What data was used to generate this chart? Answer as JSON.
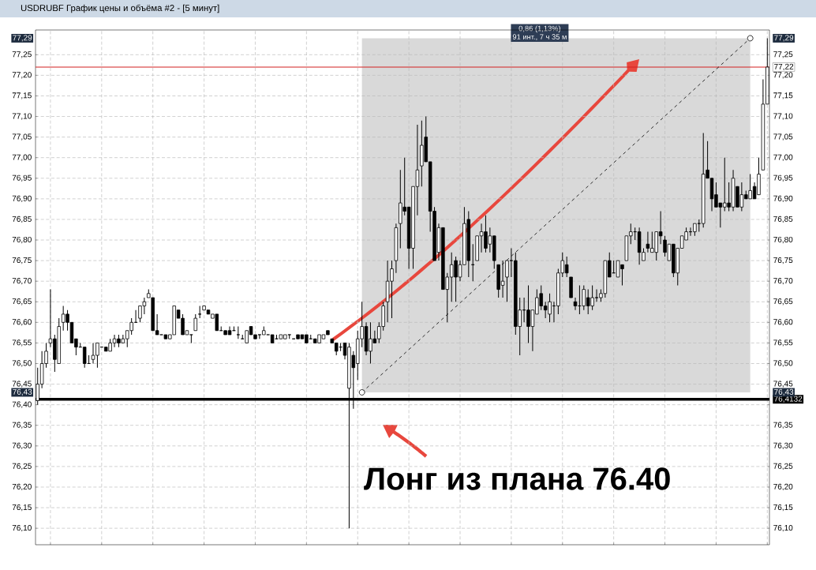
{
  "chart_data": {
    "type": "candlestick",
    "title": "USDRUBF График цены и объёма #2 - [5 минут]",
    "categories": [
      null,
      null,
      null,
      null,
      null,
      null,
      null,
      null,
      null,
      null,
      null,
      null,
      null,
      null,
      null,
      null,
      null,
      null,
      null,
      null,
      null,
      null,
      null,
      null,
      null,
      null,
      null,
      null,
      null,
      null,
      null,
      null,
      null,
      null,
      null,
      null,
      null,
      null,
      null,
      null,
      null,
      null,
      null,
      null,
      null,
      null,
      null,
      null,
      null,
      null,
      null,
      null,
      null,
      null,
      null,
      null,
      null,
      null,
      null,
      null,
      null,
      null,
      null,
      null,
      null,
      null,
      null,
      null,
      null,
      null,
      null,
      null,
      null,
      null,
      null,
      null,
      null,
      null,
      null,
      null,
      null,
      null,
      null,
      null,
      null,
      null,
      null,
      null,
      null,
      null,
      null,
      null,
      null,
      null,
      null,
      null,
      null,
      null,
      null,
      null,
      null,
      null,
      null,
      null,
      null,
      null,
      null,
      null,
      null,
      null,
      null,
      null,
      null,
      null,
      null,
      null,
      null,
      null,
      null,
      null,
      null,
      null,
      null,
      null,
      null,
      null,
      null,
      null,
      null,
      null,
      null,
      null,
      null,
      null,
      null,
      null,
      null,
      null,
      null,
      null,
      null,
      null,
      null,
      null,
      null,
      null,
      null,
      null,
      null,
      null,
      null,
      null,
      null,
      null,
      null,
      null,
      null,
      null,
      null,
      null,
      null,
      null,
      null,
      null,
      null,
      null,
      null,
      null,
      null,
      null,
      null,
      null
    ],
    "ohlc": [
      [
        76.41,
        76.49,
        76.4,
        76.45
      ],
      [
        76.45,
        76.53,
        76.44,
        76.5
      ],
      [
        76.5,
        76.55,
        76.49,
        76.53
      ],
      [
        76.55,
        76.68,
        76.54,
        76.56
      ],
      [
        76.56,
        76.57,
        76.48,
        76.51
      ],
      [
        76.5,
        76.61,
        76.5,
        76.59
      ],
      [
        76.6,
        76.64,
        76.58,
        76.62
      ],
      [
        76.62,
        76.63,
        76.58,
        76.6
      ],
      [
        76.6,
        76.6,
        76.55,
        76.55
      ],
      [
        76.56,
        76.56,
        76.52,
        76.54
      ],
      [
        76.54,
        76.55,
        76.54,
        76.54
      ],
      [
        76.54,
        76.54,
        76.49,
        76.5
      ],
      [
        76.5,
        76.52,
        76.5,
        76.5
      ],
      [
        76.51,
        76.55,
        76.5,
        76.52
      ],
      [
        76.52,
        76.55,
        76.49,
        76.55
      ],
      [
        76.54,
        76.54,
        76.54,
        76.54
      ],
      [
        76.54,
        76.54,
        76.53,
        76.53
      ],
      [
        76.53,
        76.56,
        76.53,
        76.55
      ],
      [
        76.55,
        76.57,
        76.54,
        76.56
      ],
      [
        76.56,
        76.57,
        76.54,
        76.55
      ],
      [
        76.55,
        76.57,
        76.55,
        76.56
      ],
      [
        76.56,
        76.58,
        76.54,
        76.58
      ],
      [
        76.58,
        76.61,
        76.57,
        76.6
      ],
      [
        76.6,
        76.63,
        76.6,
        76.6
      ],
      [
        76.61,
        76.64,
        76.6,
        76.64
      ],
      [
        76.64,
        76.66,
        76.62,
        76.65
      ],
      [
        76.66,
        76.68,
        76.66,
        76.67
      ],
      [
        76.66,
        76.66,
        76.58,
        76.58
      ],
      [
        76.58,
        76.62,
        76.57,
        76.57
      ],
      [
        76.57,
        76.57,
        76.57,
        76.57
      ],
      [
        76.57,
        76.57,
        76.56,
        76.56
      ],
      [
        76.56,
        76.57,
        76.56,
        76.57
      ],
      [
        76.57,
        76.64,
        76.57,
        76.64
      ],
      [
        76.63,
        76.63,
        76.61,
        76.61
      ],
      [
        76.61,
        76.62,
        76.57,
        76.57
      ],
      [
        76.57,
        76.58,
        76.57,
        76.58
      ],
      [
        76.57,
        76.57,
        76.55,
        76.57
      ],
      [
        76.58,
        76.62,
        76.58,
        76.61
      ],
      [
        76.62,
        76.64,
        76.61,
        76.62
      ],
      [
        76.63,
        76.64,
        76.63,
        76.64
      ],
      [
        76.63,
        76.63,
        76.62,
        76.62
      ],
      [
        76.61,
        76.62,
        76.61,
        76.62
      ],
      [
        76.62,
        76.62,
        76.58,
        76.58
      ],
      [
        76.58,
        76.59,
        76.58,
        76.58
      ],
      [
        76.58,
        76.58,
        76.57,
        76.57
      ],
      [
        76.58,
        76.59,
        76.57,
        76.57
      ],
      [
        76.58,
        76.59,
        76.58,
        76.58
      ],
      [
        76.57,
        76.59,
        76.56,
        76.57
      ],
      [
        76.56,
        76.57,
        76.56,
        76.56
      ],
      [
        76.55,
        76.58,
        76.55,
        76.58
      ],
      [
        76.59,
        76.59,
        76.57,
        76.57
      ],
      [
        76.57,
        76.57,
        76.56,
        76.56
      ],
      [
        76.57,
        76.57,
        76.56,
        76.57
      ],
      [
        76.57,
        76.59,
        76.57,
        76.58
      ],
      [
        76.57,
        76.57,
        76.57,
        76.57
      ],
      [
        76.57,
        76.57,
        76.55,
        76.55
      ],
      [
        76.56,
        76.57,
        76.56,
        76.56
      ],
      [
        76.56,
        76.57,
        76.56,
        76.57
      ],
      [
        76.56,
        76.57,
        76.56,
        76.57
      ],
      [
        76.57,
        76.57,
        76.56,
        76.57
      ],
      [
        76.56,
        76.56,
        76.56,
        76.56
      ],
      [
        76.57,
        76.57,
        76.56,
        76.56
      ],
      [
        76.57,
        76.57,
        76.56,
        76.56
      ],
      [
        76.57,
        76.57,
        76.55,
        76.55
      ],
      [
        76.56,
        76.57,
        76.56,
        76.56
      ],
      [
        76.56,
        76.56,
        76.55,
        76.55
      ],
      [
        76.55,
        76.57,
        76.55,
        76.57
      ],
      [
        76.56,
        76.57,
        76.56,
        76.57
      ],
      [
        76.58,
        76.58,
        76.57,
        76.57
      ],
      [
        76.56,
        76.56,
        76.55,
        76.55
      ],
      [
        76.55,
        76.55,
        76.52,
        76.53
      ],
      [
        76.54,
        76.55,
        76.53,
        76.54
      ],
      [
        76.55,
        76.55,
        76.51,
        76.52
      ],
      [
        76.44,
        76.55,
        76.1,
        76.54
      ],
      [
        76.52,
        76.53,
        76.39,
        76.49
      ],
      [
        76.5,
        76.58,
        76.46,
        76.56
      ],
      [
        76.56,
        76.65,
        76.54,
        76.59
      ],
      [
        76.59,
        76.6,
        76.52,
        76.53
      ],
      [
        76.53,
        76.6,
        76.5,
        76.56
      ],
      [
        76.56,
        76.58,
        76.55,
        76.55
      ],
      [
        76.56,
        76.6,
        76.55,
        76.59
      ],
      [
        76.59,
        76.65,
        76.58,
        76.64
      ],
      [
        76.65,
        76.75,
        76.6,
        76.7
      ],
      [
        76.7,
        76.75,
        76.61,
        76.73
      ],
      [
        76.75,
        76.84,
        76.72,
        76.83
      ],
      [
        76.84,
        76.97,
        76.78,
        76.89
      ],
      [
        76.88,
        77.0,
        76.86,
        76.87
      ],
      [
        76.88,
        76.88,
        76.73,
        76.78
      ],
      [
        76.78,
        76.93,
        76.73,
        76.93
      ],
      [
        76.93,
        77.08,
        76.86,
        76.97
      ],
      [
        76.98,
        77.09,
        76.93,
        77.03
      ],
      [
        77.05,
        77.1,
        76.99,
        76.99
      ],
      [
        76.99,
        76.99,
        76.82,
        76.87
      ],
      [
        76.87,
        76.88,
        76.75,
        76.75
      ],
      [
        76.77,
        76.84,
        76.75,
        76.83
      ],
      [
        76.83,
        76.83,
        76.68,
        76.68
      ],
      [
        76.68,
        76.72,
        76.6,
        76.71
      ],
      [
        76.71,
        76.77,
        76.65,
        76.74
      ],
      [
        76.75,
        76.76,
        76.65,
        76.71
      ],
      [
        76.71,
        76.75,
        76.7,
        76.74
      ],
      [
        76.74,
        76.88,
        76.74,
        76.84
      ],
      [
        76.85,
        76.87,
        76.71,
        76.75
      ],
      [
        76.74,
        76.79,
        76.7,
        76.74
      ],
      [
        76.75,
        76.81,
        76.75,
        76.81
      ],
      [
        76.81,
        76.84,
        76.77,
        76.82
      ],
      [
        76.82,
        76.86,
        76.77,
        76.78
      ],
      [
        76.79,
        76.83,
        76.77,
        76.81
      ],
      [
        76.81,
        76.81,
        76.73,
        76.75
      ],
      [
        76.74,
        76.74,
        76.66,
        76.68
      ],
      [
        76.69,
        76.75,
        76.66,
        76.7
      ],
      [
        76.71,
        76.75,
        76.65,
        76.75
      ],
      [
        76.75,
        76.78,
        76.71,
        76.75
      ],
      [
        76.75,
        76.77,
        76.57,
        76.59
      ],
      [
        76.59,
        76.66,
        76.52,
        76.63
      ],
      [
        76.63,
        76.66,
        76.6,
        76.63
      ],
      [
        76.63,
        76.69,
        76.55,
        76.59
      ],
      [
        76.59,
        76.63,
        76.53,
        76.63
      ],
      [
        76.62,
        76.68,
        76.62,
        76.66
      ],
      [
        76.67,
        76.69,
        76.63,
        76.64
      ],
      [
        76.64,
        76.65,
        76.61,
        76.63
      ],
      [
        76.62,
        76.67,
        76.6,
        76.65
      ],
      [
        76.64,
        76.65,
        76.6,
        76.64
      ],
      [
        76.64,
        76.73,
        76.62,
        76.72
      ],
      [
        76.72,
        76.77,
        76.71,
        76.75
      ],
      [
        76.74,
        76.76,
        76.71,
        76.72
      ],
      [
        76.71,
        76.71,
        76.66,
        76.66
      ],
      [
        76.65,
        76.66,
        76.63,
        76.64
      ],
      [
        76.64,
        76.69,
        76.62,
        76.64
      ],
      [
        76.64,
        76.69,
        76.63,
        76.68
      ],
      [
        76.66,
        76.68,
        76.62,
        76.64
      ],
      [
        76.64,
        76.69,
        76.63,
        76.66
      ],
      [
        76.66,
        76.68,
        76.65,
        76.66
      ],
      [
        76.66,
        76.68,
        76.65,
        76.67
      ],
      [
        76.67,
        76.75,
        76.66,
        76.75
      ],
      [
        76.75,
        76.77,
        76.71,
        76.71
      ],
      [
        76.72,
        76.75,
        76.72,
        76.72
      ],
      [
        76.71,
        76.75,
        76.71,
        76.75
      ],
      [
        76.74,
        76.74,
        76.69,
        76.73
      ],
      [
        76.75,
        76.81,
        76.75,
        76.81
      ],
      [
        76.81,
        76.84,
        76.79,
        76.82
      ],
      [
        76.82,
        76.83,
        76.8,
        76.82
      ],
      [
        76.82,
        76.83,
        76.74,
        76.77
      ],
      [
        76.75,
        76.78,
        76.75,
        76.77
      ],
      [
        76.79,
        76.82,
        76.77,
        76.78
      ],
      [
        76.77,
        76.82,
        76.77,
        76.78
      ],
      [
        76.77,
        76.82,
        76.75,
        76.82
      ],
      [
        76.82,
        76.87,
        76.79,
        76.81
      ],
      [
        76.8,
        76.81,
        76.76,
        76.77
      ],
      [
        76.75,
        76.79,
        76.75,
        76.79
      ],
      [
        76.79,
        76.79,
        76.71,
        76.72
      ],
      [
        76.72,
        76.78,
        76.69,
        76.78
      ],
      [
        76.78,
        76.81,
        76.78,
        76.81
      ],
      [
        76.8,
        76.83,
        76.8,
        76.82
      ],
      [
        76.82,
        76.83,
        76.81,
        76.82
      ],
      [
        76.82,
        76.84,
        76.81,
        76.84
      ],
      [
        76.84,
        76.85,
        76.82,
        76.84
      ],
      [
        76.84,
        77.06,
        76.83,
        76.96
      ],
      [
        76.97,
        77.04,
        76.95,
        76.95
      ],
      [
        76.95,
        76.95,
        76.87,
        76.9
      ],
      [
        76.91,
        76.94,
        76.88,
        76.88
      ],
      [
        76.89,
        76.89,
        76.83,
        76.88
      ],
      [
        76.88,
        77.0,
        76.87,
        76.89
      ],
      [
        76.89,
        76.94,
        76.87,
        76.88
      ],
      [
        76.88,
        76.97,
        76.87,
        76.95
      ],
      [
        76.93,
        76.93,
        76.88,
        76.88
      ],
      [
        76.88,
        76.94,
        76.87,
        76.91
      ],
      [
        76.91,
        76.92,
        76.9,
        76.9
      ],
      [
        76.9,
        76.96,
        76.9,
        76.92
      ],
      [
        76.93,
        76.94,
        76.9,
        76.9
      ],
      [
        76.91,
        77.0,
        76.91,
        76.96
      ],
      [
        76.97,
        77.19,
        76.97,
        77.13
      ],
      [
        77.13,
        77.29,
        77.13,
        77.22
      ]
    ],
    "series": [
      {
        "type": "line",
        "values": [
          null,
          null,
          null,
          null,
          null,
          null,
          null,
          null,
          null,
          null,
          null,
          null,
          null,
          null,
          null,
          null,
          null,
          null,
          null,
          null,
          null,
          null,
          null,
          null,
          null,
          null,
          null,
          null,
          null,
          null,
          null,
          null,
          null,
          null,
          null,
          null,
          null,
          null,
          null,
          null,
          null,
          null,
          null,
          null,
          null,
          null,
          null,
          null,
          null,
          null,
          null,
          null,
          null,
          null,
          null,
          null,
          null,
          null,
          null,
          null,
          null,
          null,
          null,
          null,
          null,
          null,
          null,
          null,
          null,
          null,
          null,
          null,
          null,
          null,
          null,
          null,
          76.43,
          null,
          null,
          null,
          null,
          null,
          null,
          null,
          null,
          null,
          null,
          null,
          null,
          null,
          null,
          null,
          null,
          null,
          null,
          null,
          null,
          null,
          null,
          null,
          null,
          null,
          null,
          null,
          null,
          null,
          null,
          null,
          null,
          null,
          null,
          null,
          null,
          null,
          null,
          null,
          null,
          null,
          null,
          null,
          null,
          null,
          null,
          null,
          null,
          null,
          null,
          null,
          null,
          null,
          null,
          null,
          null,
          null,
          null,
          null,
          null,
          null,
          null,
          null,
          null,
          null,
          null,
          null,
          null,
          null,
          null,
          null,
          null,
          null,
          null,
          null,
          null,
          null,
          null,
          null,
          null,
          null,
          null,
          null,
          null,
          null,
          null,
          null,
          null,
          null,
          null,
          77.29,
          null,
          null,
          null,
          null
        ],
        "color": "#000000",
        "line_style": "dashed",
        "marker": "circle"
      }
    ],
    "ylim": [
      76.06,
      77.31
    ],
    "yticks": [
      {
        "value": 76.1,
        "label": "76,10"
      },
      {
        "value": 76.15,
        "label": "76,15"
      },
      {
        "value": 76.2,
        "label": "76,20"
      },
      {
        "value": 76.25,
        "label": "76,25"
      },
      {
        "value": 76.3,
        "label": "76,30"
      },
      {
        "value": 76.35,
        "label": "76,35"
      },
      {
        "value": 76.4,
        "label": "76,40"
      },
      {
        "value": 76.45,
        "label": "76,45"
      },
      {
        "value": 76.5,
        "label": "76,50"
      },
      {
        "value": 76.55,
        "label": "76,55"
      },
      {
        "value": 76.6,
        "label": "76,60"
      },
      {
        "value": 76.65,
        "label": "76,65"
      },
      {
        "value": 76.7,
        "label": "76,70"
      },
      {
        "value": 76.75,
        "label": "76,75"
      },
      {
        "value": 76.8,
        "label": "76,80"
      },
      {
        "value": 76.85,
        "label": "76,85"
      },
      {
        "value": 76.9,
        "label": "76,90"
      },
      {
        "value": 76.95,
        "label": "76,95"
      },
      {
        "value": 77.0,
        "label": "77,00"
      },
      {
        "value": 77.05,
        "label": "77,05"
      },
      {
        "value": 77.1,
        "label": "77,10"
      },
      {
        "value": 77.15,
        "label": "77,15"
      },
      {
        "value": 77.2,
        "label": "77,20"
      },
      {
        "value": 77.25,
        "label": "77,25"
      }
    ],
    "y2lim": [
      76.06,
      77.31
    ],
    "y2ticks": [
      {
        "value": 76.1,
        "label": "76,10"
      },
      {
        "value": 76.15,
        "label": "76,15"
      },
      {
        "value": 76.2,
        "label": "76,20"
      },
      {
        "value": 76.25,
        "label": "76,25"
      },
      {
        "value": 76.3,
        "label": "76,30"
      },
      {
        "value": 76.35,
        "label": "76,35"
      },
      {
        "value": 76.4,
        "label": null
      },
      {
        "value": 76.45,
        "label": "76,45"
      },
      {
        "value": 76.5,
        "label": "76,50"
      },
      {
        "value": 76.55,
        "label": "76,55"
      },
      {
        "value": 76.6,
        "label": "76,60"
      },
      {
        "value": 76.65,
        "label": "76,65"
      },
      {
        "value": 76.7,
        "label": "76,70"
      },
      {
        "value": 76.75,
        "label": "76,75"
      },
      {
        "value": 76.8,
        "label": "76,80"
      },
      {
        "value": 76.85,
        "label": "76,85"
      },
      {
        "value": 76.9,
        "label": "76,90"
      },
      {
        "value": 76.95,
        "label": "76,95"
      },
      {
        "value": 77.0,
        "label": "77,00"
      },
      {
        "value": 77.05,
        "label": "77,05"
      },
      {
        "value": 77.1,
        "label": "77,10"
      },
      {
        "value": 77.15,
        "label": "77,15"
      },
      {
        "value": 77.2,
        "label": "77,20"
      },
      {
        "value": 77.25,
        "label": "77,25"
      }
    ],
    "tick_labels": "y",
    "grid": true,
    "ref_lines": [
      {
        "axis": "y",
        "value": 77.22,
        "label": "77,22",
        "color": "#d42020"
      },
      {
        "axis": "y",
        "value": 76.4132,
        "label": "76,4132",
        "color": "#000000"
      }
    ],
    "annotations": [
      "0,86 (1,13%)",
      "91 инт., 7 ч 35 м",
      "Лонг из плана 76.40",
      {
        "text": "76,43",
        "y": 76.43
      },
      {
        "text": "77,29",
        "y": 77.29
      }
    ]
  }
}
